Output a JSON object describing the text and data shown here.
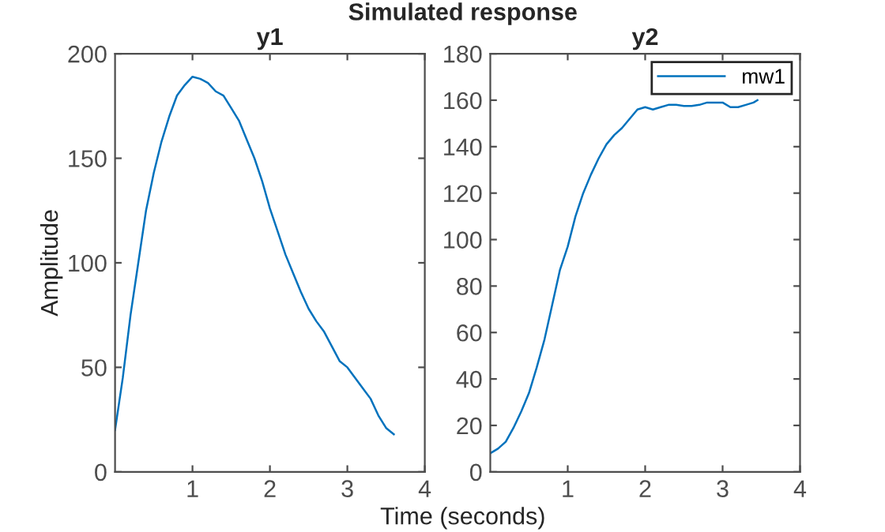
{
  "chart_data": [
    {
      "type": "line",
      "title": "y1",
      "xlabel": "Time (seconds)",
      "ylabel": "Amplitude",
      "annotations": [
        "Simulated response"
      ],
      "x": [
        0,
        0.1,
        0.2,
        0.3,
        0.4,
        0.5,
        0.6,
        0.7,
        0.8,
        0.9,
        1.0,
        1.1,
        1.2,
        1.3,
        1.4,
        1.5,
        1.6,
        1.7,
        1.8,
        1.9,
        2.0,
        2.1,
        2.2,
        2.3,
        2.4,
        2.5,
        2.6,
        2.7,
        2.8,
        2.9,
        3.0,
        3.1,
        3.2,
        3.3,
        3.4,
        3.5,
        3.6
      ],
      "series": [
        {
          "color": "#0072bd",
          "values": [
            20,
            45,
            75,
            100,
            125,
            143,
            158,
            170,
            180,
            185,
            189,
            188,
            186,
            182,
            180,
            174,
            168,
            159,
            150,
            139,
            126,
            115,
            104,
            95,
            86,
            78,
            72,
            67,
            60,
            53,
            50,
            45,
            40,
            35,
            27,
            21,
            18
          ]
        }
      ],
      "xlim": [
        0,
        4
      ],
      "xticks": [
        1,
        2,
        3,
        4
      ],
      "ylim": [
        0,
        200
      ],
      "yticks": [
        0,
        50,
        100,
        150,
        200
      ],
      "line_style": "solid"
    },
    {
      "type": "line",
      "title": "y2",
      "x": [
        0,
        0.1,
        0.2,
        0.3,
        0.4,
        0.5,
        0.6,
        0.7,
        0.8,
        0.9,
        1.0,
        1.1,
        1.2,
        1.3,
        1.4,
        1.5,
        1.6,
        1.7,
        1.8,
        1.9,
        2.0,
        2.1,
        2.2,
        2.3,
        2.4,
        2.5,
        2.6,
        2.7,
        2.8,
        2.9,
        3.0,
        3.1,
        3.2,
        3.3,
        3.4,
        3.45
      ],
      "series": [
        {
          "name": "mw1",
          "color": "#0072bd",
          "values": [
            8,
            10,
            13,
            19,
            26,
            34,
            45,
            57,
            72,
            87,
            97,
            110,
            120,
            128,
            135,
            141,
            145,
            148,
            152,
            156,
            157,
            156,
            157,
            158,
            158,
            157.5,
            157.5,
            158,
            159,
            159,
            159,
            157,
            157,
            158,
            159,
            160
          ]
        }
      ],
      "xlim": [
        0,
        4
      ],
      "xticks": [
        1,
        2,
        3,
        4
      ],
      "ylim": [
        0,
        180
      ],
      "yticks": [
        0,
        20,
        40,
        60,
        80,
        100,
        120,
        140,
        160,
        180
      ],
      "line_style": "solid",
      "legend": "top right"
    }
  ]
}
